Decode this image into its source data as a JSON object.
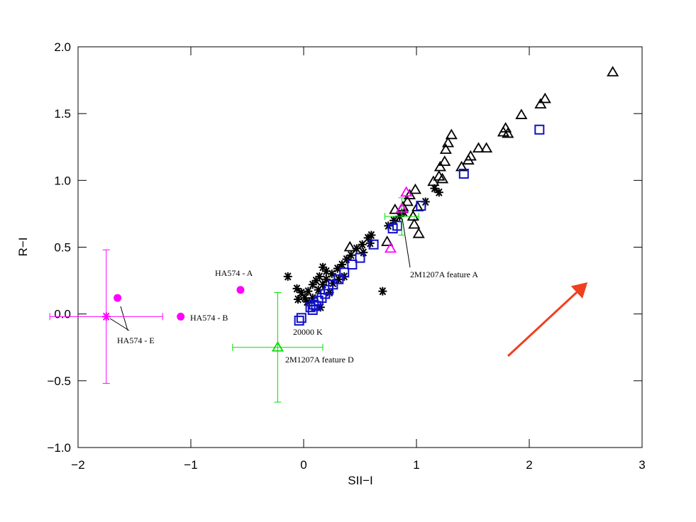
{
  "chart_data": {
    "type": "scatter",
    "x_label": "SII−I",
    "y_label": "R−I",
    "xlim": [
      -2,
      3
    ],
    "ylim": [
      -1,
      2
    ],
    "xticks": [
      {
        "value": -2,
        "label": "−2"
      },
      {
        "value": -1,
        "label": "−1"
      },
      0,
      1,
      2,
      3
    ],
    "yticks": [
      {
        "value": -1,
        "label": "−1.0"
      },
      {
        "value": -0.5,
        "label": "−0.5"
      },
      {
        "value": 0,
        "label": "0.0"
      },
      0.5,
      {
        "value": 1,
        "label": "1.0"
      },
      1.5,
      {
        "value": 2,
        "label": "2.0"
      }
    ],
    "series": [
      {
        "marker": "triangle",
        "color": "#000000",
        "x": [
          2.74,
          2.14,
          2.1,
          1.93,
          1.79,
          1.77,
          1.81,
          1.62,
          1.55,
          1.48,
          1.46,
          1.4,
          1.31,
          1.28,
          1.26,
          1.25,
          1.21,
          1.2,
          1.23,
          1.15,
          0.99,
          0.94,
          0.92,
          1.01,
          0.97,
          1.02,
          0.98,
          0.88,
          0.81,
          0.74,
          0.41
        ],
        "y": [
          1.81,
          1.61,
          1.57,
          1.49,
          1.39,
          1.36,
          1.35,
          1.24,
          1.24,
          1.18,
          1.15,
          1.1,
          1.34,
          1.28,
          1.23,
          1.14,
          1.1,
          1.03,
          1.01,
          0.99,
          0.93,
          0.89,
          0.84,
          0.8,
          0.73,
          0.6,
          0.67,
          0.8,
          0.78,
          0.54,
          0.5
        ]
      },
      {
        "marker": "asterisk",
        "color": "#000000",
        "x": [
          -0.14,
          0.7,
          0.15,
          0.01,
          0.04,
          0.08,
          0.11,
          -0.02,
          -0.05,
          0.03,
          0.13,
          0.17,
          0.2,
          0.25,
          0.3,
          0.34,
          0.38,
          0.42,
          0.47,
          0.52,
          0.57,
          0.6,
          0.59,
          0.53,
          0.17,
          0.2,
          0.14,
          0.26,
          0.31,
          0.36,
          0.08,
          0.23,
          1.08,
          1.16,
          1.2,
          0.85,
          0.89,
          0.8,
          0.75,
          -0.06
        ],
        "y": [
          0.28,
          0.17,
          0.05,
          0.12,
          0.17,
          0.22,
          0.25,
          0.16,
          0.11,
          0.09,
          0.18,
          0.22,
          0.26,
          0.3,
          0.34,
          0.37,
          0.41,
          0.44,
          0.49,
          0.52,
          0.57,
          0.59,
          0.53,
          0.46,
          0.35,
          0.32,
          0.28,
          0.23,
          0.26,
          0.28,
          0.12,
          0.16,
          0.84,
          0.94,
          0.91,
          0.73,
          0.76,
          0.7,
          0.66,
          0.19
        ]
      },
      {
        "marker": "square",
        "color": "#1010c8",
        "x": [
          -0.04,
          -0.02,
          0.06,
          0.09,
          0.13,
          0.16,
          0.19,
          0.22,
          0.26,
          0.31,
          0.36,
          0.43,
          0.5,
          0.62,
          0.79,
          0.83,
          1.04,
          1.42,
          2.09,
          0.08,
          0.11
        ],
        "y": [
          -0.05,
          -0.03,
          0.05,
          0.07,
          0.1,
          0.12,
          0.15,
          0.18,
          0.22,
          0.26,
          0.31,
          0.37,
          0.42,
          0.52,
          0.64,
          0.66,
          0.81,
          1.05,
          1.38,
          0.03,
          0.06
        ]
      },
      {
        "marker": "triangle",
        "color": "#ff00ff",
        "x": [
          0.91,
          0.87,
          0.77
        ],
        "y": [
          0.91,
          0.79,
          0.49
        ]
      },
      {
        "marker": "circle",
        "color": "#ff00ff",
        "x": [
          -1.65,
          -1.09,
          -0.56
        ],
        "y": [
          0.12,
          -0.02,
          0.18
        ]
      },
      {
        "marker": "asterisk",
        "color": "#ff00ff",
        "x": [
          -1.75
        ],
        "y": [
          -0.02
        ],
        "xerr": [
          0.5
        ],
        "yerr": [
          0.5
        ]
      },
      {
        "marker": "triangle",
        "color": "#00e000",
        "x": [
          -0.23
        ],
        "y": [
          -0.25
        ],
        "xerr": [
          0.4
        ],
        "yerr": [
          0.41
        ]
      },
      {
        "marker": "none",
        "color": "#00e000",
        "x": [
          0.87
        ],
        "y": [
          0.73
        ],
        "xerr": [
          0.15
        ],
        "yerr": [
          0.14
        ]
      }
    ],
    "annotations": [
      "HA574 - A",
      "HA574 - B",
      "HA574 - E",
      "2M1207A feature D",
      "2M1207A feature A",
      "20000 K"
    ]
  }
}
